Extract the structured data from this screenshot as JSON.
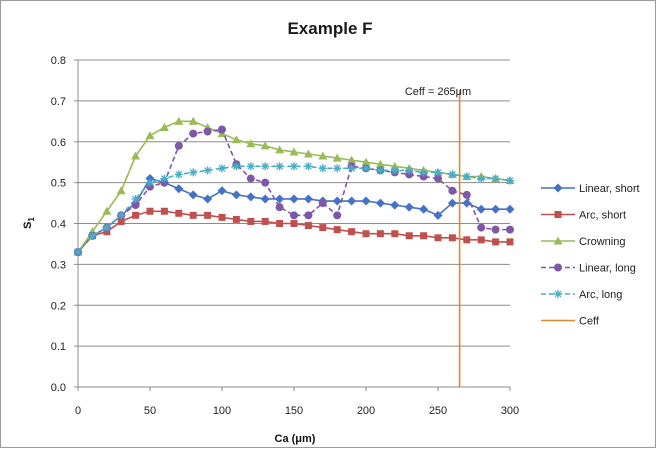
{
  "chart_data": {
    "type": "line",
    "title": "Example F",
    "xlabel": "Ca (μm)",
    "ylabel": "S",
    "ylabel_subscript": "1",
    "xlim": [
      0,
      300
    ],
    "ylim": [
      0.0,
      0.8
    ],
    "xticks": [
      0,
      50,
      100,
      150,
      200,
      250,
      300
    ],
    "yticks": [
      "0.0",
      "0.1",
      "0.2",
      "0.3",
      "0.4",
      "0.5",
      "0.6",
      "0.7",
      "0.8"
    ],
    "grid": "horizontal",
    "legend_position": "right",
    "series": [
      {
        "name": "Linear, short",
        "color": "#4472C4",
        "marker": "diamond",
        "dash": false,
        "x": [
          0,
          10,
          20,
          30,
          40,
          50,
          60,
          70,
          80,
          90,
          100,
          110,
          120,
          130,
          140,
          150,
          160,
          170,
          180,
          190,
          200,
          210,
          220,
          230,
          240,
          250,
          260,
          270,
          280,
          290,
          300
        ],
        "y": [
          0.33,
          0.37,
          0.39,
          0.42,
          0.45,
          0.51,
          0.5,
          0.485,
          0.47,
          0.46,
          0.48,
          0.47,
          0.465,
          0.46,
          0.46,
          0.46,
          0.46,
          0.455,
          0.455,
          0.455,
          0.455,
          0.45,
          0.445,
          0.44,
          0.435,
          0.42,
          0.45,
          0.45,
          0.435,
          0.435,
          0.435
        ]
      },
      {
        "name": "Arc, short",
        "color": "#C0504D",
        "marker": "square",
        "dash": false,
        "x": [
          0,
          10,
          20,
          30,
          40,
          50,
          60,
          70,
          80,
          90,
          100,
          110,
          120,
          130,
          140,
          150,
          160,
          170,
          180,
          190,
          200,
          210,
          220,
          230,
          240,
          250,
          260,
          270,
          280,
          290,
          300
        ],
        "y": [
          0.33,
          0.37,
          0.38,
          0.405,
          0.42,
          0.43,
          0.43,
          0.425,
          0.42,
          0.42,
          0.415,
          0.41,
          0.405,
          0.405,
          0.4,
          0.4,
          0.395,
          0.39,
          0.385,
          0.38,
          0.375,
          0.375,
          0.375,
          0.37,
          0.37,
          0.365,
          0.365,
          0.36,
          0.36,
          0.355,
          0.355
        ]
      },
      {
        "name": "Crowning",
        "color": "#9BBB59",
        "marker": "triangle",
        "dash": false,
        "x": [
          0,
          10,
          20,
          30,
          40,
          50,
          60,
          70,
          80,
          90,
          100,
          110,
          120,
          130,
          140,
          150,
          160,
          170,
          180,
          190,
          200,
          210,
          220,
          230,
          240,
          250,
          260,
          270,
          280,
          290,
          300
        ],
        "y": [
          0.33,
          0.38,
          0.43,
          0.48,
          0.565,
          0.615,
          0.635,
          0.65,
          0.65,
          0.635,
          0.62,
          0.605,
          0.595,
          0.59,
          0.58,
          0.575,
          0.57,
          0.565,
          0.56,
          0.555,
          0.55,
          0.545,
          0.54,
          0.535,
          0.53,
          0.525,
          0.52,
          0.515,
          0.515,
          0.51,
          0.505
        ]
      },
      {
        "name": "Linear, long",
        "color": "#7E57A8",
        "marker": "circle",
        "dash": true,
        "x": [
          0,
          10,
          20,
          30,
          40,
          50,
          60,
          70,
          80,
          90,
          100,
          110,
          120,
          130,
          140,
          150,
          160,
          170,
          180,
          190,
          200,
          210,
          220,
          230,
          240,
          250,
          260,
          270,
          280,
          290,
          300
        ],
        "y": [
          0.33,
          0.37,
          0.39,
          0.42,
          0.445,
          0.49,
          0.5,
          0.59,
          0.62,
          0.625,
          0.63,
          0.545,
          0.51,
          0.5,
          0.44,
          0.42,
          0.42,
          0.45,
          0.42,
          0.54,
          0.535,
          0.53,
          0.525,
          0.52,
          0.515,
          0.51,
          0.48,
          0.47,
          0.39,
          0.385,
          0.385
        ]
      },
      {
        "name": "Arc, long",
        "color": "#4BACC6",
        "marker": "star",
        "dash": true,
        "x": [
          0,
          10,
          20,
          30,
          40,
          50,
          60,
          70,
          80,
          90,
          100,
          110,
          120,
          130,
          140,
          150,
          160,
          170,
          180,
          190,
          200,
          210,
          220,
          230,
          240,
          250,
          260,
          270,
          280,
          290,
          300
        ],
        "y": [
          0.33,
          0.37,
          0.39,
          0.42,
          0.46,
          0.5,
          0.51,
          0.52,
          0.525,
          0.53,
          0.535,
          0.54,
          0.54,
          0.54,
          0.54,
          0.54,
          0.54,
          0.535,
          0.535,
          0.535,
          0.535,
          0.53,
          0.53,
          0.53,
          0.525,
          0.525,
          0.52,
          0.515,
          0.51,
          0.51,
          0.505
        ]
      }
    ],
    "vline": {
      "name": "Ceff",
      "x": 265,
      "color": "#E0882E",
      "label": "Ceff = 265μm"
    }
  }
}
